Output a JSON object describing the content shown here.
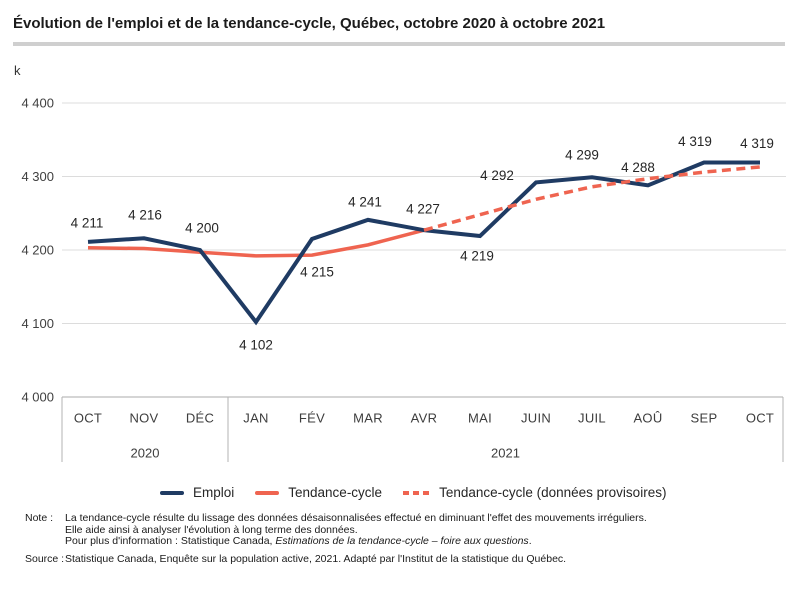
{
  "title": "Évolution de l'emploi et de la tendance-cycle, Québec, octobre 2020 à octobre 2021",
  "unit_label": "k",
  "chart_data": {
    "type": "line",
    "unit": "k (thousands of jobs)",
    "categories": [
      "OCT",
      "NOV",
      "DÉC",
      "JAN",
      "FÉV",
      "MAR",
      "AVR",
      "MAI",
      "JUIN",
      "JUIL",
      "AOÛ",
      "SEP",
      "OCT"
    ],
    "year_groups": [
      {
        "label": "2020",
        "start": 0,
        "end": 2
      },
      {
        "label": "2021",
        "start": 3,
        "end": 12
      }
    ],
    "ylim": [
      4000,
      4400
    ],
    "yticks": [
      4000,
      4100,
      4200,
      4300,
      4400
    ],
    "ytick_labels": [
      "4 000",
      "4 100",
      "4 200",
      "4 300",
      "4 400"
    ],
    "grid": true,
    "legend_position": "bottom",
    "series": [
      {
        "name": "Emploi",
        "color": "#1f3b63",
        "dash": "solid",
        "show_labels": true,
        "values": [
          4211,
          4216,
          4200,
          4102,
          4215,
          4241,
          4227,
          4219,
          4292,
          4299,
          4288,
          4319,
          4319
        ],
        "point_labels": [
          "4 211",
          "4 216",
          "4 200",
          "4 102",
          "4 215",
          "4 241",
          "4 227",
          "4 219",
          "4 292",
          "4 299",
          "4 288",
          "4 319",
          "4 319"
        ]
      },
      {
        "name": "Tendance-cycle",
        "color": "#ef6450",
        "dash": "solid",
        "show_labels": false,
        "values": [
          4203,
          4202,
          4197,
          4192,
          4193,
          4207,
          4227,
          null,
          null,
          null,
          null,
          null,
          null
        ]
      },
      {
        "name": "Tendance-cycle (données provisoires)",
        "color": "#ef6450",
        "dash": "dashed",
        "show_labels": false,
        "values": [
          null,
          null,
          null,
          null,
          null,
          null,
          4227,
          4248,
          4269,
          4286,
          4297,
          4306,
          4313
        ]
      }
    ]
  },
  "notes": {
    "note_label": "Note :",
    "note_lines": [
      "La tendance-cycle résulte du lissage des données désaisonnalisées effectué en diminuant l'effet des mouvements irréguliers.",
      "Elle aide ainsi à analyser l'évolution à long terme des données."
    ],
    "note_line3_prefix": "Pour plus d'information : Statistique Canada, ",
    "note_line3_italic": "Estimations de la tendance-cycle – foire aux questions",
    "note_line3_suffix": ".",
    "source_label": "Source :",
    "source_text": "Statistique Canada, Enquête sur la population active, 2021. Adapté par l'Institut de la statistique du Québec."
  }
}
